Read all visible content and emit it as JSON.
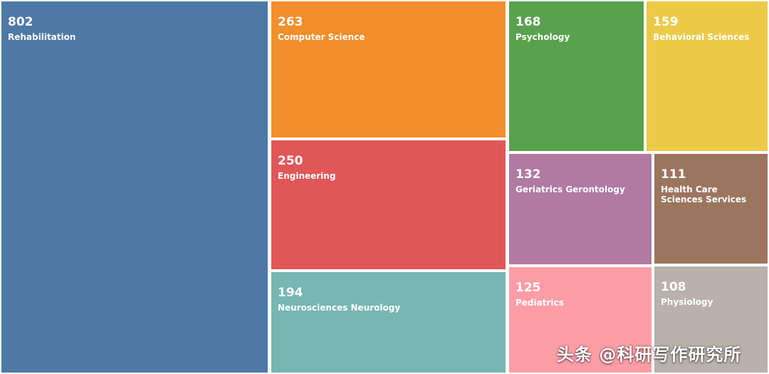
{
  "chart_data": {
    "type": "treemap",
    "title": "",
    "items": [
      {
        "label": "Rehabilitation",
        "value": 802,
        "color": "#4e79a7"
      },
      {
        "label": "Computer Science",
        "value": 263,
        "color": "#f28e2b"
      },
      {
        "label": "Engineering",
        "value": 250,
        "color": "#e15759"
      },
      {
        "label": "Neurosciences Neurology",
        "value": 194,
        "color": "#76b7b2"
      },
      {
        "label": "Psychology",
        "value": 168,
        "color": "#59a14f"
      },
      {
        "label": "Behavioral Sciences",
        "value": 159,
        "color": "#edc948"
      },
      {
        "label": "Geriatrics Gerontology",
        "value": 132,
        "color": "#b07aa1"
      },
      {
        "label": "Health Care Sciences Services",
        "value": 111,
        "color": "#9c755f"
      },
      {
        "label": "Pediatrics",
        "value": 125,
        "color": "#ff9da7"
      },
      {
        "label": "Physiology",
        "value": 108,
        "color": "#bab0ac"
      }
    ]
  },
  "watermark": {
    "text": "头条 @科研写作研究所"
  }
}
